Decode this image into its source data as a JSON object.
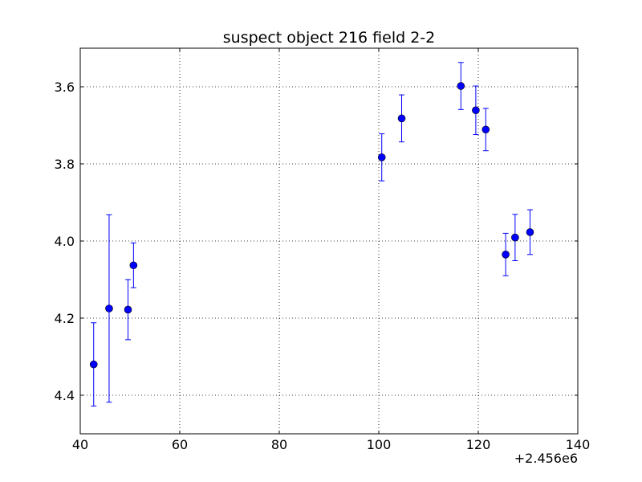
{
  "chart_data": {
    "type": "scatter",
    "title": "suspect object 216 field 2-2",
    "xlabel": "",
    "ylabel": "",
    "x_offset_label": "+2.456e6",
    "xlim": [
      40,
      140
    ],
    "ylim": [
      4.5,
      3.5
    ],
    "y_inverted": true,
    "grid": true,
    "x_ticks": [
      40,
      60,
      80,
      100,
      120,
      140
    ],
    "y_ticks": [
      3.6,
      3.8,
      4.0,
      4.2,
      4.4
    ],
    "x_tick_labels": [
      "40",
      "60",
      "80",
      "100",
      "120",
      "140"
    ],
    "y_tick_labels": [
      "3.6",
      "3.8",
      "4.0",
      "4.2",
      "4.4"
    ],
    "marker_color": "#0000ff",
    "series": [
      {
        "x": [
          42.7,
          45.8,
          49.6,
          50.7,
          100.6,
          104.6,
          116.5,
          119.5,
          121.5,
          125.5,
          127.4,
          130.4
        ],
        "y": [
          4.32,
          4.175,
          4.178,
          4.063,
          3.783,
          3.682,
          3.598,
          3.661,
          3.711,
          4.035,
          3.991,
          3.977
        ],
        "err": [
          0.108,
          0.243,
          0.078,
          0.058,
          0.061,
          0.061,
          0.061,
          0.063,
          0.055,
          0.055,
          0.06,
          0.058
        ]
      }
    ]
  }
}
